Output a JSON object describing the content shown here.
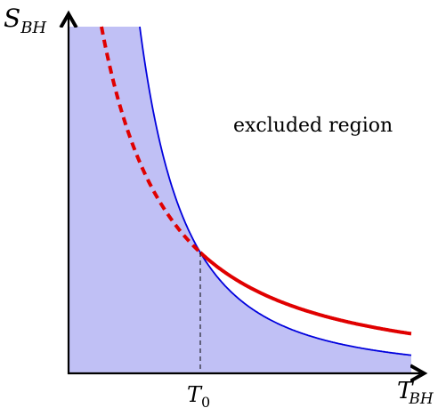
{
  "labels": {
    "y_axis": {
      "main": "S",
      "sub": "BH"
    },
    "x_axis": {
      "main": "T",
      "sub": "BH"
    },
    "t0": {
      "main": "T",
      "sub": "0"
    },
    "region": "excluded region"
  },
  "colors": {
    "fill": "#c0c0f5",
    "boundary": "#0000dd",
    "curve": "#e00000",
    "axis": "#000000",
    "guide": "#000000"
  },
  "curves": [
    {
      "name": "excluded-region-boundary",
      "style": "solid",
      "color_key": "boundary"
    },
    {
      "name": "red-curve-dashed",
      "style": "dashed",
      "color_key": "curve"
    },
    {
      "name": "red-curve-solid",
      "style": "solid",
      "color_key": "curve"
    }
  ]
}
